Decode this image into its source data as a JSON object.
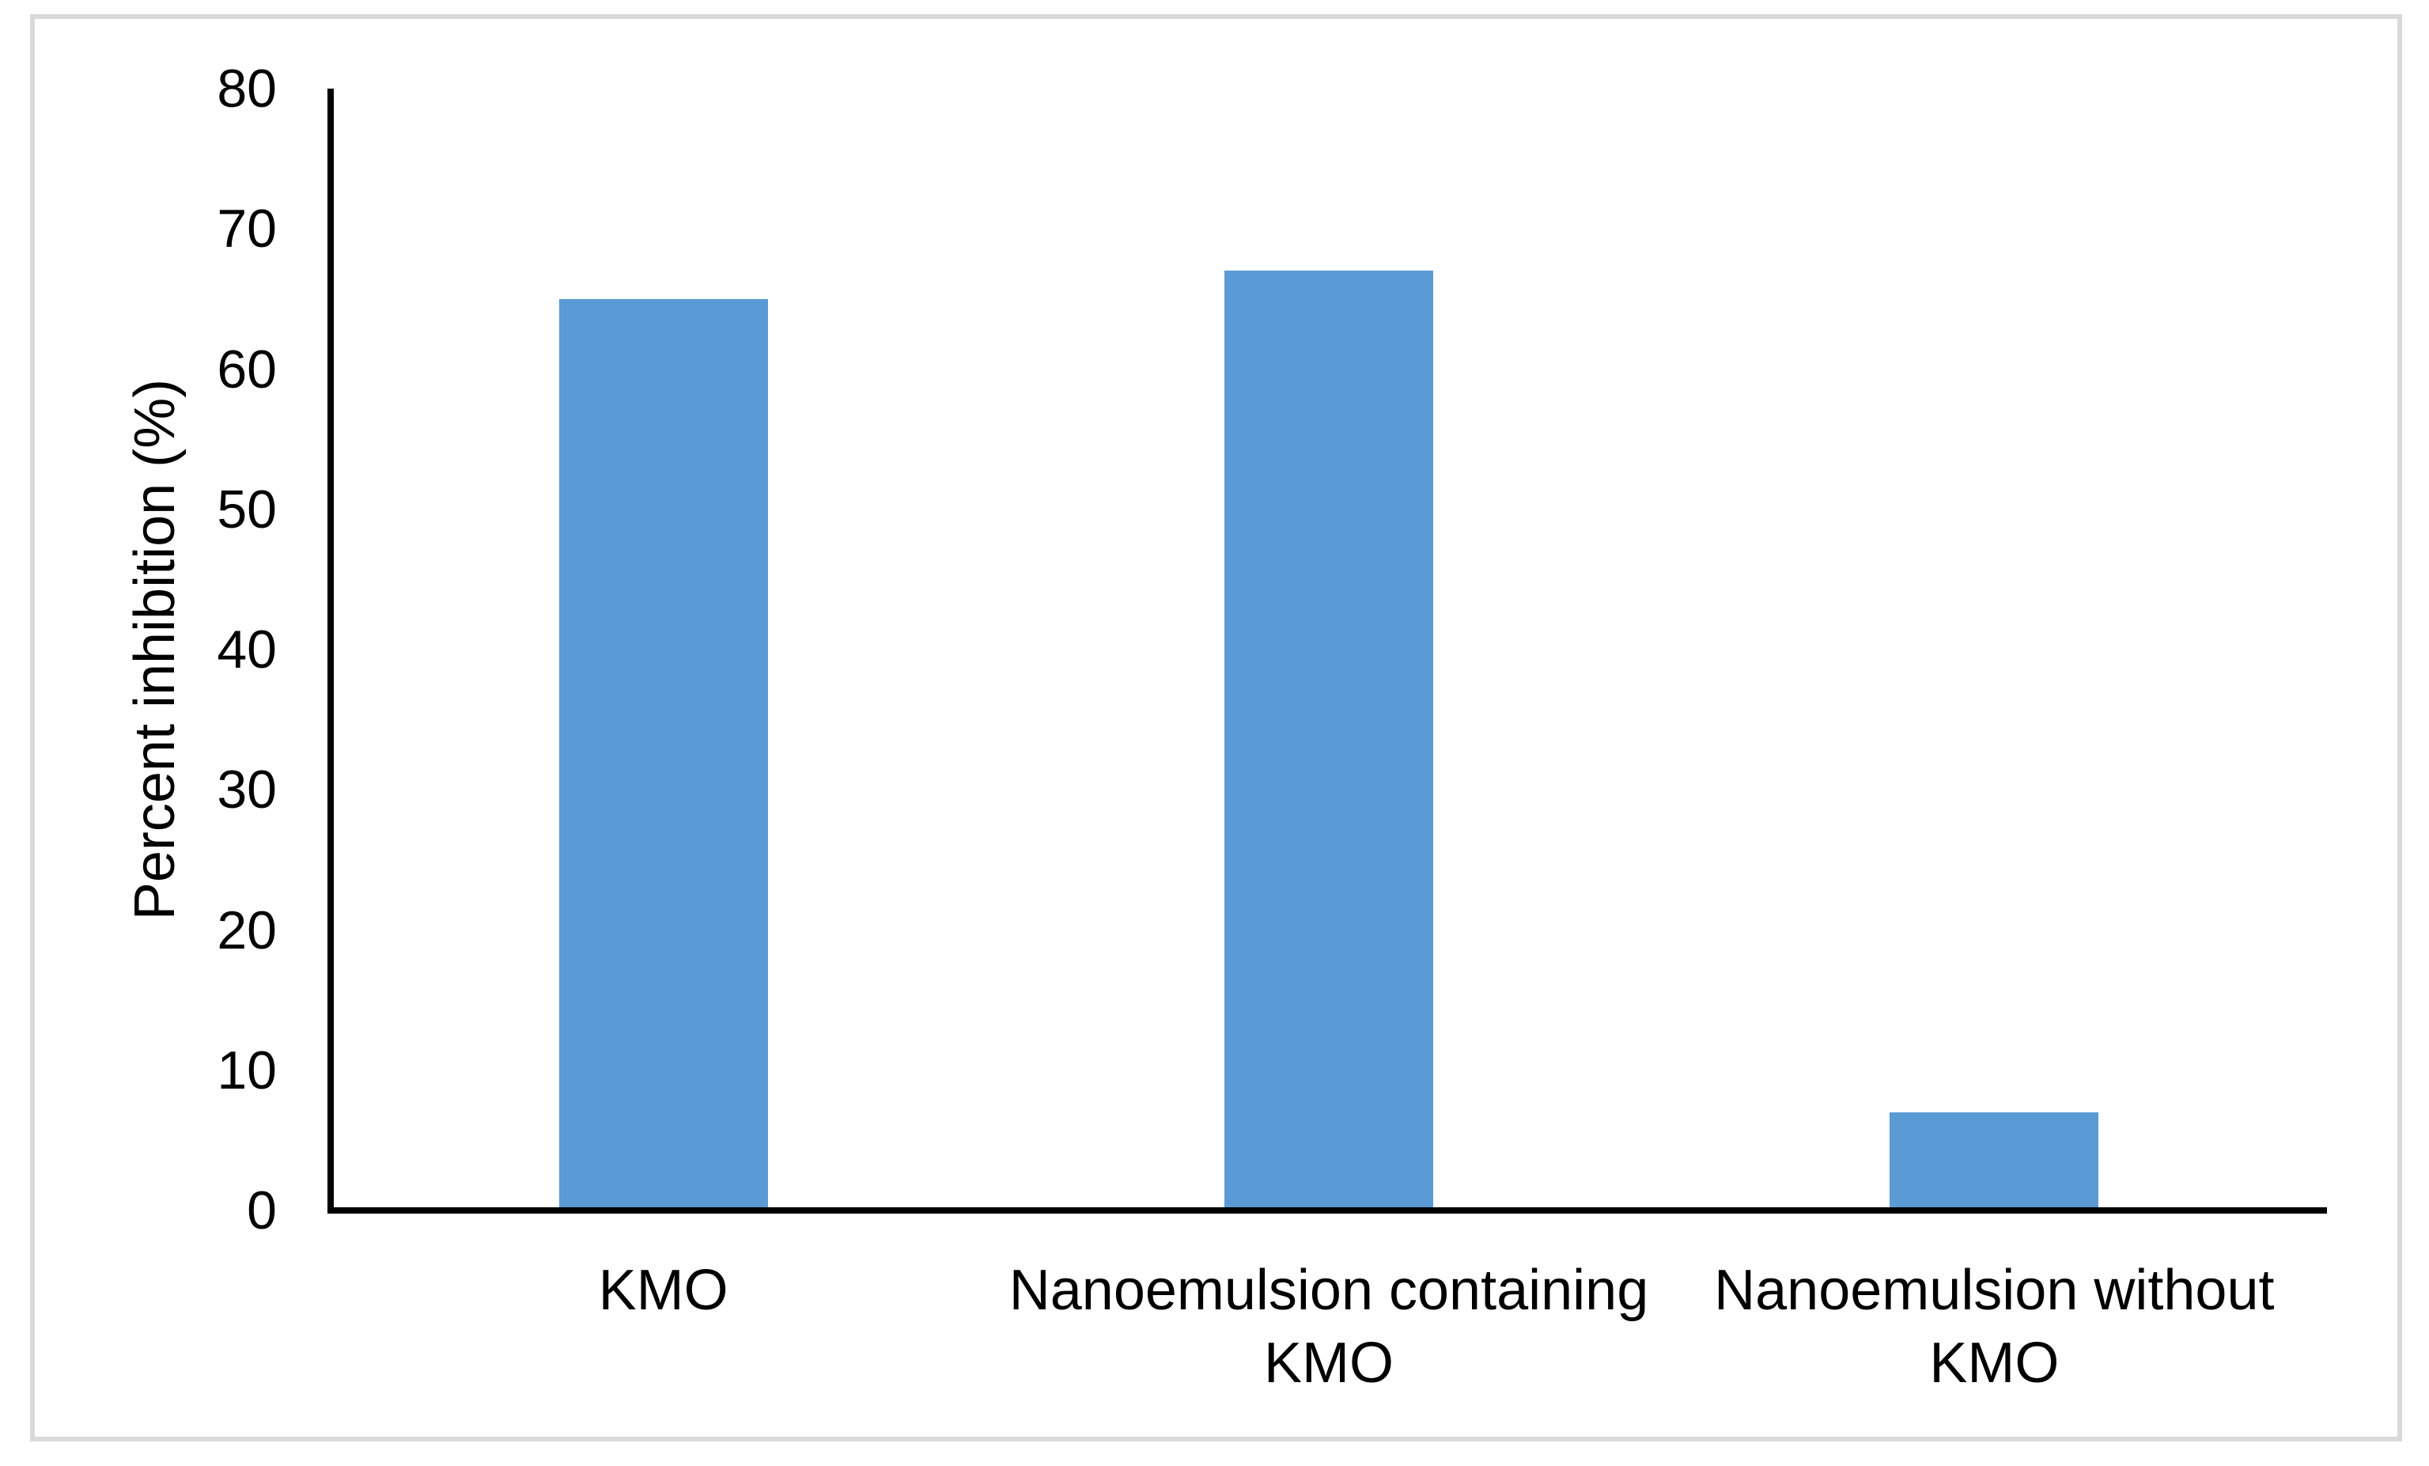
{
  "figure": {
    "background_color": "#ffffff",
    "frame_border_color": "#d9d9d9"
  },
  "chart_data": {
    "type": "bar",
    "title": "",
    "categories": [
      "KMO",
      "Nanoemulsion containing KMO",
      "Nanoemulsion without KMO"
    ],
    "category_label_lines": [
      [
        "KMO"
      ],
      [
        "Nanoemulsion containing",
        "KMO"
      ],
      [
        "Nanoemulsion without",
        "KMO"
      ]
    ],
    "values": [
      65,
      67,
      7
    ],
    "xlabel": "",
    "ylabel": "Percent inhibition (%)",
    "ylim": [
      0,
      80
    ],
    "yticks": [
      "0",
      "10",
      "20",
      "30",
      "40",
      "50",
      "60",
      "70",
      "80"
    ],
    "bar_color": "#5b9bd5",
    "axis_color": "#000000",
    "text_color": "#000000",
    "grid": false,
    "legend": false
  }
}
